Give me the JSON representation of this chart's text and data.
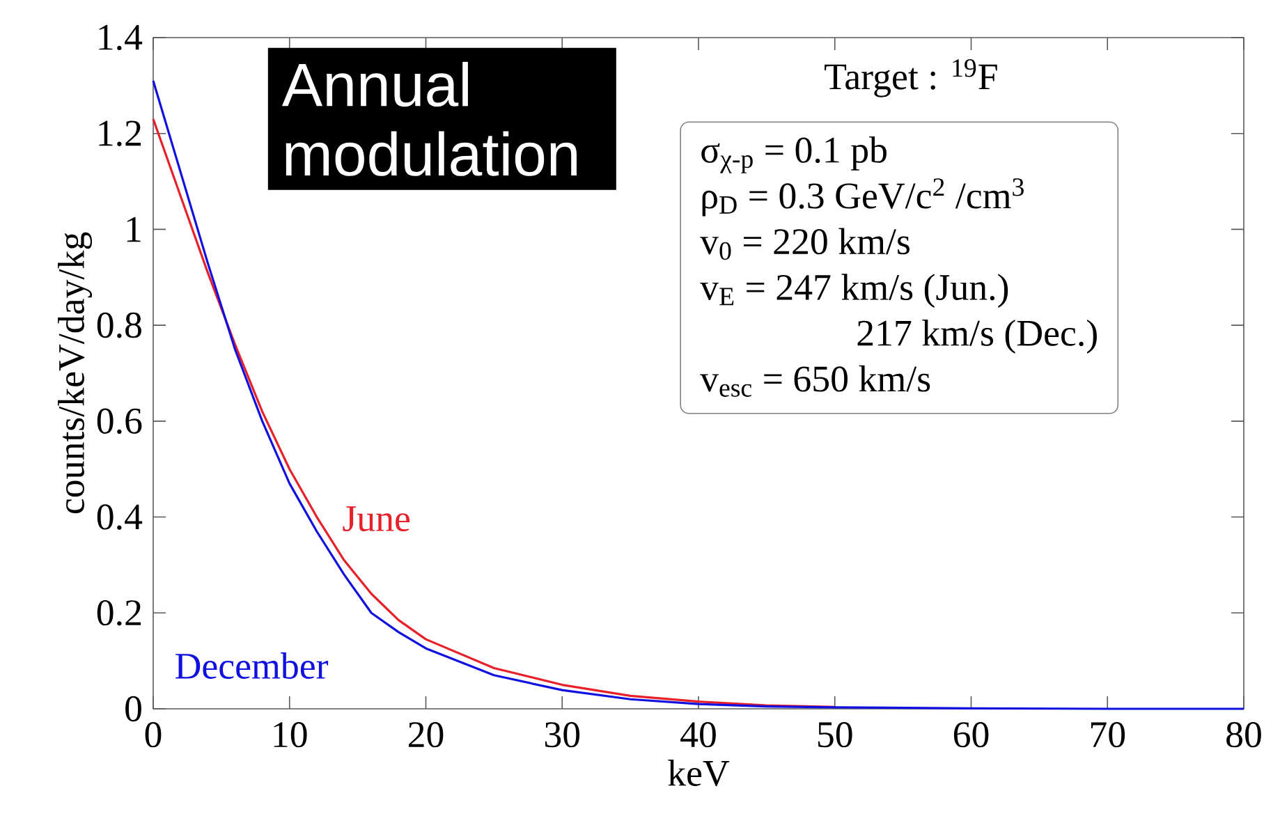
{
  "chart_data": {
    "type": "line",
    "xlabel": "keV",
    "ylabel": "counts/keV/day/kg",
    "xlim": [
      0,
      80
    ],
    "ylim": [
      0,
      1.4
    ],
    "xticks": [
      0,
      10,
      20,
      30,
      40,
      50,
      60,
      70,
      80
    ],
    "yticks": [
      0,
      0.2,
      0.4,
      0.6,
      0.8,
      1,
      1.2,
      1.4
    ],
    "grid": false,
    "legend": false,
    "marker": "none",
    "line_style": "solid",
    "x": [
      0,
      2,
      4,
      6,
      8,
      10,
      12,
      14,
      16,
      18,
      20,
      25,
      30,
      35,
      40,
      45,
      50,
      60,
      70,
      80
    ],
    "series": [
      {
        "name": "June",
        "color": "#e8202a",
        "values": [
          1.23,
          1.07,
          0.91,
          0.76,
          0.62,
          0.5,
          0.4,
          0.31,
          0.24,
          0.185,
          0.145,
          0.085,
          0.05,
          0.027,
          0.015,
          0.007,
          0.004,
          null,
          null,
          null
        ]
      },
      {
        "name": "December",
        "color": "#1010e0",
        "values": [
          1.31,
          1.12,
          0.93,
          0.75,
          0.6,
          0.47,
          0.37,
          0.28,
          0.2,
          0.16,
          0.126,
          0.07,
          0.039,
          0.02,
          0.01,
          0.005,
          0.003,
          0.001,
          0,
          0
        ]
      }
    ],
    "annotations": [
      "Annual modulation",
      "Target : $^{19}$F",
      "σ$_{χ-p}$ = 0.1 pb",
      "ρ$_{D}$ = 0.3 GeV/c$^{2}$ /cm$^{3}$",
      "v$_{0}$ = 220 km/s",
      "v$_{E}$ = 247 km/s (Jun.)",
      "217 km/s (Dec.)",
      "v$_{esc}$ = 650 km/s"
    ]
  }
}
